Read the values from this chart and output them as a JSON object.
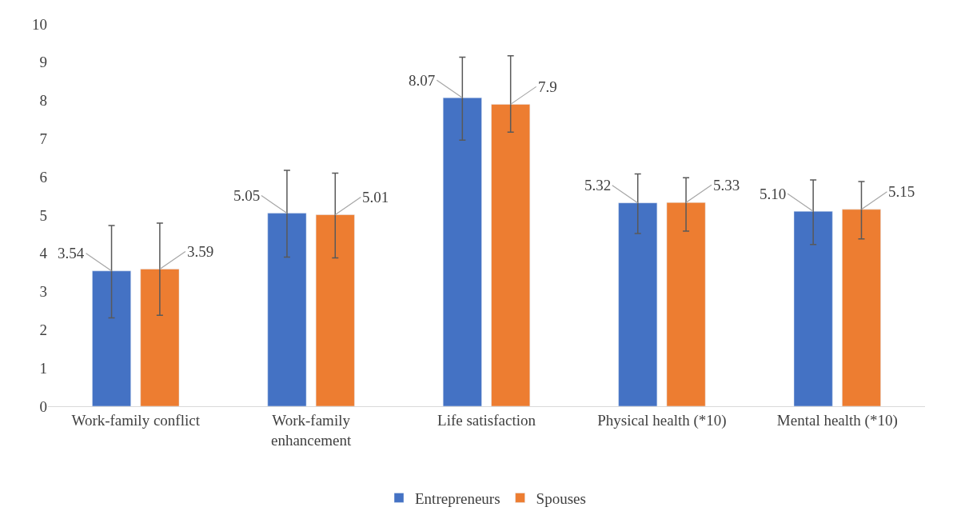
{
  "chart_data": {
    "type": "bar",
    "categories": [
      "Work-family conflict",
      "Work-family enhancement",
      "Life satisfaction",
      "Physical health (*10)",
      "Mental health (*10)"
    ],
    "series": [
      {
        "name": "Entrepreneurs",
        "color": "#4472c4",
        "values": [
          3.54,
          5.05,
          8.07,
          5.32,
          5.1
        ],
        "value_labels": [
          "3.54",
          "5.05",
          "8.07",
          "5.32",
          "5.10"
        ],
        "errors": [
          [
            2.31,
            4.73
          ],
          [
            3.9,
            6.17
          ],
          [
            6.96,
            9.13
          ],
          [
            4.52,
            6.08
          ],
          [
            4.23,
            5.92
          ]
        ]
      },
      {
        "name": "Spouses",
        "color": "#ed7d31",
        "values": [
          3.59,
          5.01,
          7.9,
          5.33,
          5.15
        ],
        "value_labels": [
          "3.59",
          "5.01",
          "7.9",
          "5.33",
          "5.15"
        ],
        "errors": [
          [
            2.38,
            4.79
          ],
          [
            3.88,
            6.1
          ],
          [
            7.17,
            9.17
          ],
          [
            4.58,
            5.98
          ],
          [
            4.38,
            5.88
          ]
        ]
      }
    ],
    "ylim": [
      0,
      10
    ],
    "yticks": [
      0,
      1,
      2,
      3,
      4,
      5,
      6,
      7,
      8,
      9,
      10
    ],
    "grid": false,
    "legend": "bottom"
  }
}
